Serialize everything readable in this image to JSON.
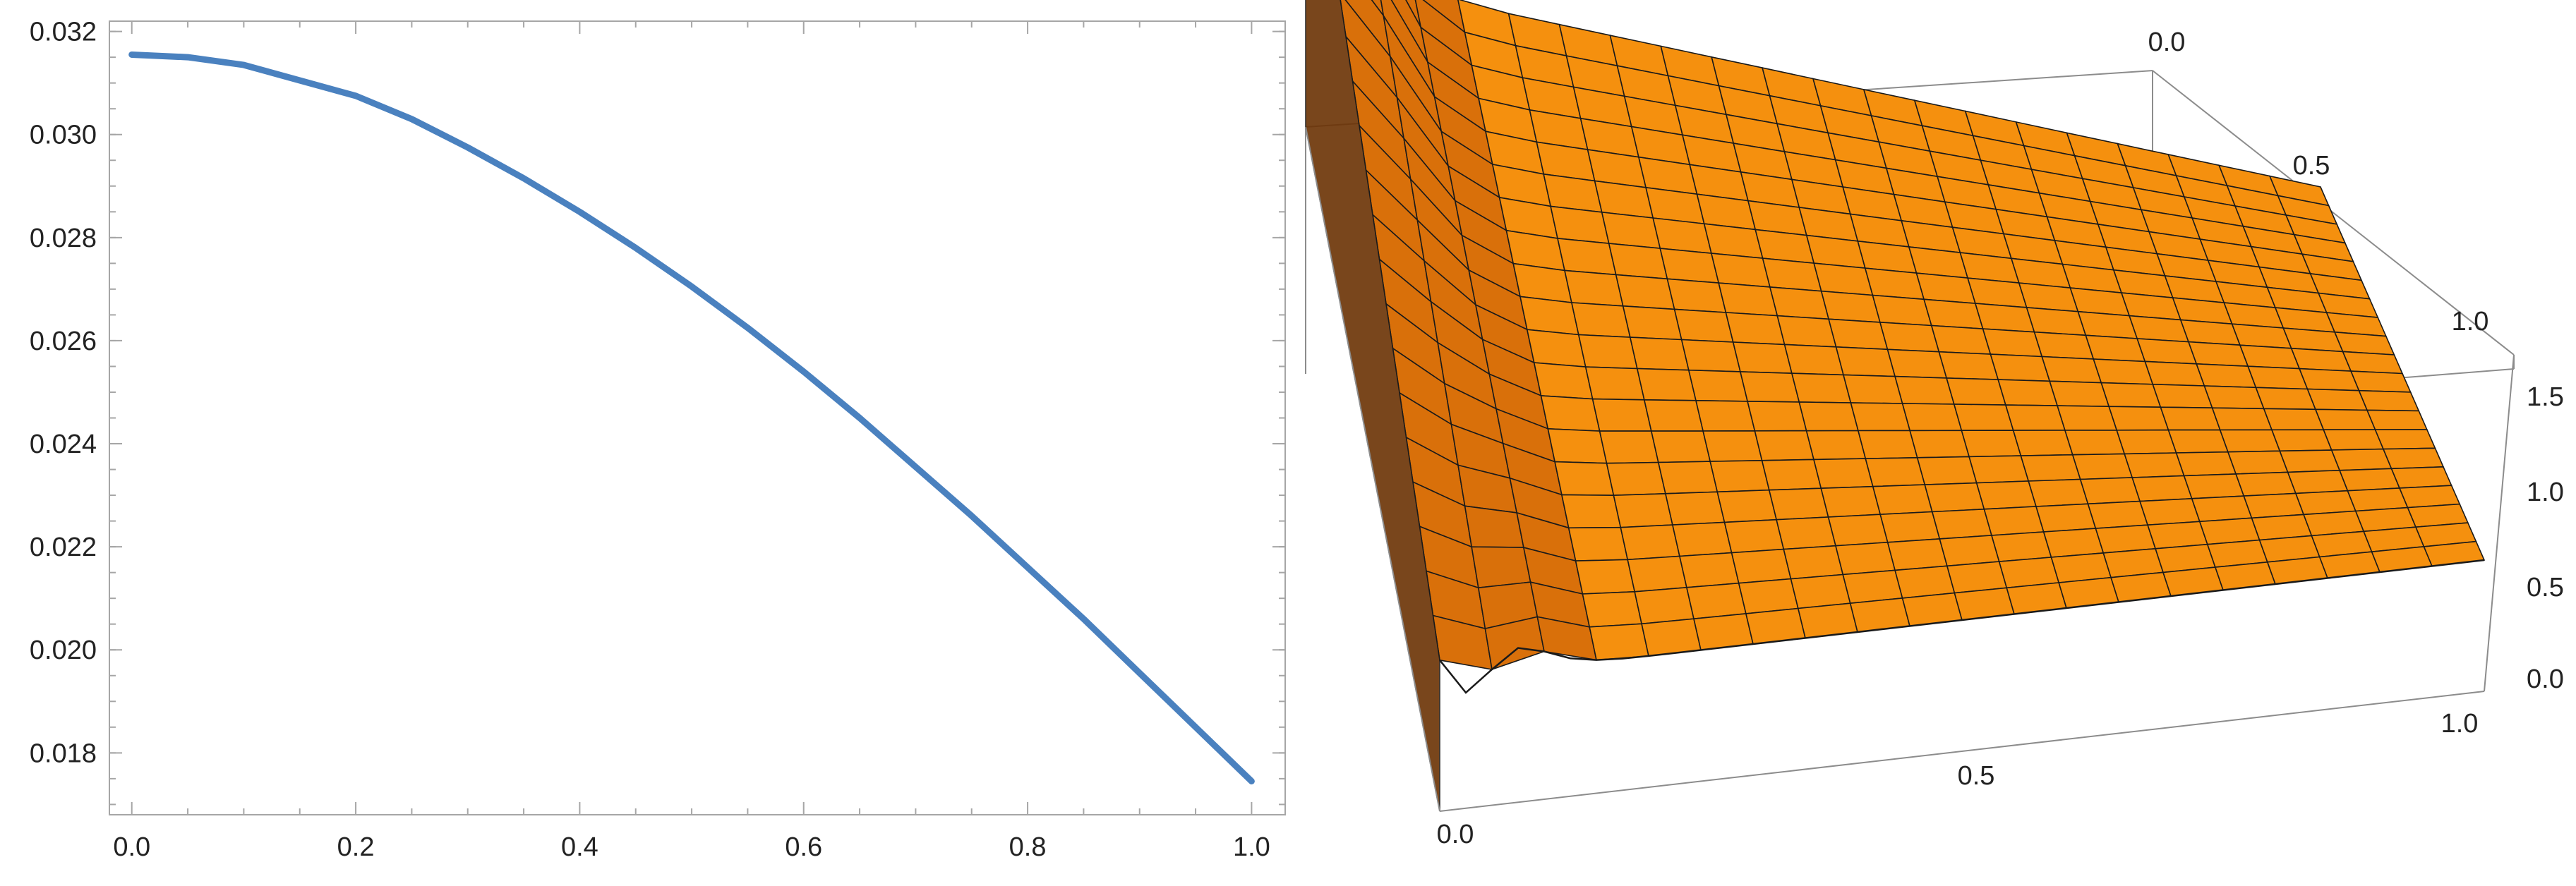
{
  "chart_data": [
    {
      "type": "line",
      "title": "",
      "xlabel": "",
      "ylabel": "",
      "xlim": [
        -0.02,
        1.03
      ],
      "ylim": [
        0.0168,
        0.0322
      ],
      "x_ticks": [
        "0.0",
        "0.2",
        "0.4",
        "0.6",
        "0.8",
        "1.0"
      ],
      "y_ticks": [
        "0.018",
        "0.020",
        "0.022",
        "0.024",
        "0.026",
        "0.028",
        "0.030",
        "0.032"
      ],
      "grid": false,
      "series": [
        {
          "color": "#4a81bf",
          "x": [
            0.0,
            0.05,
            0.1,
            0.15,
            0.2,
            0.25,
            0.3,
            0.35,
            0.4,
            0.45,
            0.5,
            0.55,
            0.6,
            0.65,
            0.7,
            0.75,
            0.8,
            0.85,
            0.9,
            0.95,
            1.0
          ],
          "y": [
            0.03155,
            0.0315,
            0.03135,
            0.03105,
            0.03075,
            0.0303,
            0.02975,
            0.02915,
            0.0285,
            0.0278,
            0.02705,
            0.02625,
            0.0254,
            0.0245,
            0.02355,
            0.0226,
            0.0216,
            0.0206,
            0.01955,
            0.0185,
            0.01745
          ]
        }
      ]
    },
    {
      "type": "surface",
      "title": "",
      "x_ticks": [
        "0.0",
        "0.5",
        "1.0"
      ],
      "y_ticks": [
        "0.0",
        "0.5",
        "1.0"
      ],
      "z_ticks": [
        "0.0",
        "0.5",
        "1.0",
        "1.5"
      ],
      "xlim": [
        0,
        1
      ],
      "ylim": [
        0,
        1
      ],
      "zlim": [
        0,
        1.65
      ],
      "surface_color": "#f58a0c",
      "mesh_color": "#1a1a1a",
      "mesh_lines": 20
    }
  ]
}
